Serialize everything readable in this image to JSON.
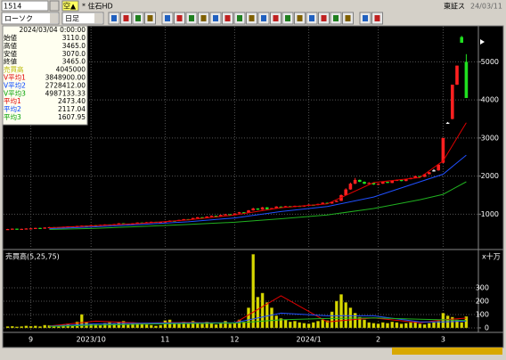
{
  "toolbar": {
    "symbol": "1514",
    "tag": "空▲",
    "name": "* 住石HD",
    "market": "東証ス",
    "date": "24/03/11",
    "chart_style": "ローソク",
    "period": "日足"
  },
  "info_box": {
    "datetime": "2024/03/04 0:00:00",
    "rows": [
      {
        "label": "始値",
        "value": "3110.0",
        "color": "#000000"
      },
      {
        "label": "高値",
        "value": "3465.0",
        "color": "#000000"
      },
      {
        "label": "安値",
        "value": "3070.0",
        "color": "#000000"
      },
      {
        "label": "終値",
        "value": "3465.0",
        "color": "#000000"
      },
      {
        "label": "売買高",
        "value": "4045000",
        "color": "#b8b800"
      },
      {
        "label": "V平均1",
        "value": "3848900.00",
        "color": "#e00000"
      },
      {
        "label": "V平均2",
        "value": "2728412.00",
        "color": "#0040ff"
      },
      {
        "label": "V平均3",
        "value": "4987133.33",
        "color": "#00a000"
      },
      {
        "label": "平均1",
        "value": "2473.40",
        "color": "#e00000"
      },
      {
        "label": "平均2",
        "value": "2117.04",
        "color": "#0040ff"
      },
      {
        "label": "平均3",
        "value": "1607.95",
        "color": "#00a000"
      }
    ]
  },
  "chart_data": [
    {
      "type": "candlestick",
      "categories": [
        null,
        null,
        null,
        null,
        null,
        "9",
        null,
        null,
        null,
        null,
        null,
        null,
        null,
        null,
        null,
        null,
        null,
        null,
        "2023/10",
        null,
        null,
        null,
        null,
        null,
        null,
        null,
        null,
        null,
        null,
        null,
        null,
        null,
        null,
        null,
        "11",
        null,
        null,
        null,
        null,
        null,
        null,
        null,
        null,
        null,
        null,
        null,
        null,
        null,
        null,
        "12",
        null,
        null,
        null,
        null,
        null,
        null,
        null,
        null,
        null,
        null,
        null,
        null,
        null,
        null,
        null,
        "2024/1",
        null,
        null,
        null,
        null,
        null,
        null,
        null,
        null,
        null,
        null,
        null,
        null,
        null,
        null,
        "2",
        null,
        null,
        null,
        null,
        null,
        null,
        null,
        null,
        null,
        null,
        null,
        null,
        null,
        "3",
        null,
        null,
        null,
        null,
        null
      ],
      "candles": [
        [
          600,
          615,
          595,
          610
        ],
        [
          610,
          625,
          605,
          620
        ],
        [
          620,
          622,
          595,
          600
        ],
        [
          600,
          620,
          598,
          615
        ],
        [
          615,
          630,
          610,
          625
        ],
        [
          625,
          635,
          620,
          630
        ],
        [
          630,
          645,
          625,
          640
        ],
        [
          640,
          642,
          615,
          620
        ],
        [
          620,
          655,
          618,
          650
        ],
        [
          650,
          665,
          645,
          660
        ],
        [
          660,
          662,
          645,
          650
        ],
        [
          650,
          655,
          635,
          640
        ],
        [
          640,
          675,
          638,
          670
        ],
        [
          670,
          685,
          665,
          680
        ],
        [
          680,
          682,
          655,
          660
        ],
        [
          660,
          695,
          658,
          690
        ],
        [
          690,
          705,
          685,
          700
        ],
        [
          700,
          702,
          685,
          690
        ],
        [
          690,
          715,
          688,
          710
        ],
        [
          710,
          712,
          695,
          700
        ],
        [
          700,
          725,
          698,
          720
        ],
        [
          720,
          735,
          715,
          730
        ],
        [
          730,
          732,
          715,
          720
        ],
        [
          720,
          745,
          718,
          740
        ],
        [
          740,
          765,
          735,
          760
        ],
        [
          760,
          762,
          745,
          750
        ],
        [
          750,
          752,
          725,
          730
        ],
        [
          730,
          765,
          728,
          760
        ],
        [
          760,
          785,
          755,
          780
        ],
        [
          780,
          782,
          765,
          770
        ],
        [
          770,
          795,
          768,
          790
        ],
        [
          790,
          805,
          785,
          800
        ],
        [
          800,
          802,
          775,
          780
        ],
        [
          780,
          795,
          778,
          790
        ],
        [
          790,
          815,
          785,
          810
        ],
        [
          810,
          835,
          805,
          830
        ],
        [
          830,
          832,
          815,
          820
        ],
        [
          820,
          855,
          818,
          850
        ],
        [
          850,
          875,
          845,
          870
        ],
        [
          870,
          872,
          855,
          860
        ],
        [
          860,
          905,
          858,
          900
        ],
        [
          900,
          925,
          895,
          920
        ],
        [
          920,
          922,
          895,
          900
        ],
        [
          900,
          945,
          898,
          940
        ],
        [
          940,
          965,
          935,
          960
        ],
        [
          960,
          962,
          945,
          950
        ],
        [
          950,
          985,
          948,
          980
        ],
        [
          980,
          1010,
          975,
          1000
        ],
        [
          1000,
          1002,
          985,
          990
        ],
        [
          990,
          1025,
          985,
          1020
        ],
        [
          1020,
          1060,
          1015,
          1050
        ],
        [
          1050,
          1055,
          1035,
          1040
        ],
        [
          1040,
          1110,
          1035,
          1100
        ],
        [
          1100,
          1170,
          1095,
          1150
        ],
        [
          1150,
          1155,
          1110,
          1120
        ],
        [
          1120,
          1190,
          1115,
          1180
        ],
        [
          1180,
          1185,
          1125,
          1130
        ],
        [
          1130,
          1165,
          1125,
          1160
        ],
        [
          1160,
          1210,
          1155,
          1200
        ],
        [
          1200,
          1205,
          1175,
          1180
        ],
        [
          1180,
          1215,
          1175,
          1210
        ],
        [
          1210,
          1215,
          1185,
          1190
        ],
        [
          1190,
          1225,
          1185,
          1220
        ],
        [
          1220,
          1225,
          1195,
          1200
        ],
        [
          1200,
          1235,
          1195,
          1230
        ],
        [
          1230,
          1260,
          1225,
          1250
        ],
        [
          1250,
          1255,
          1235,
          1240
        ],
        [
          1240,
          1275,
          1235,
          1270
        ],
        [
          1270,
          1310,
          1265,
          1300
        ],
        [
          1300,
          1305,
          1275,
          1280
        ],
        [
          1280,
          1330,
          1275,
          1320
        ],
        [
          1320,
          1360,
          1315,
          1350
        ],
        [
          1350,
          1520,
          1345,
          1500
        ],
        [
          1500,
          1680,
          1490,
          1650
        ],
        [
          1650,
          1830,
          1640,
          1800
        ],
        [
          1800,
          1950,
          1790,
          1900
        ],
        [
          1900,
          1910,
          1840,
          1850
        ],
        [
          1850,
          1860,
          1790,
          1800
        ],
        [
          1800,
          1840,
          1795,
          1820
        ],
        [
          1820,
          1830,
          1770,
          1780
        ],
        [
          1780,
          1810,
          1775,
          1800
        ],
        [
          1800,
          1860,
          1795,
          1850
        ],
        [
          1850,
          1855,
          1815,
          1820
        ],
        [
          1820,
          1890,
          1815,
          1880
        ],
        [
          1880,
          1910,
          1875,
          1900
        ],
        [
          1900,
          1905,
          1865,
          1870
        ],
        [
          1870,
          1930,
          1865,
          1920
        ],
        [
          1920,
          1960,
          1915,
          1950
        ],
        [
          1950,
          2010,
          1945,
          2000
        ],
        [
          2000,
          2005,
          1975,
          1980
        ],
        [
          1980,
          2060,
          1975,
          2050
        ],
        [
          2050,
          2110,
          2045,
          2100
        ],
        [
          2150,
          2180,
          2120,
          2150
        ],
        [
          2150,
          2320,
          2140,
          2300
        ],
        [
          2350,
          3000,
          2340,
          3000
        ],
        [
          3400,
          3420,
          3380,
          3400
        ],
        [
          3500,
          4400,
          3490,
          4400
        ],
        [
          4400,
          4900,
          4390,
          4900
        ],
        [
          5650,
          5680,
          5500,
          5500
        ],
        [
          5000,
          5200,
          4050,
          4050
        ]
      ],
      "colors": {
        "up": "#ff2020",
        "down": "#20e020",
        "flat": "#ffffff"
      },
      "series": [
        {
          "color": "#e00000",
          "x": [
            9,
            19,
            29,
            39,
            49,
            59,
            69,
            79,
            89,
            94,
            99
          ],
          "values": [
            645,
            700,
            760,
            850,
            980,
            1170,
            1270,
            1830,
            1960,
            2400,
            3400
          ]
        },
        {
          "color": "#2050ff",
          "x": [
            9,
            19,
            29,
            39,
            49,
            59,
            69,
            79,
            89,
            94,
            99
          ],
          "values": [
            620,
            670,
            730,
            800,
            900,
            1070,
            1200,
            1450,
            1850,
            2050,
            2550
          ]
        },
        {
          "color": "#20b020",
          "x": [
            9,
            19,
            29,
            39,
            49,
            59,
            69,
            79,
            89,
            94,
            99
          ],
          "values": [
            600,
            630,
            680,
            730,
            790,
            880,
            980,
            1150,
            1380,
            1520,
            1850
          ]
        }
      ],
      "ylim": [
        120,
        5920
      ],
      "yticks": [
        1000,
        2000,
        3000,
        4000,
        5000
      ],
      "grid": true
    },
    {
      "type": "bar",
      "title": "売買高(5,25,75)",
      "unit_label": "x十万",
      "values": [
        10,
        12,
        8,
        10,
        15,
        12,
        15,
        10,
        20,
        18,
        12,
        10,
        25,
        30,
        15,
        45,
        100,
        40,
        30,
        25,
        20,
        35,
        40,
        30,
        45,
        50,
        25,
        40,
        35,
        30,
        25,
        20,
        15,
        20,
        55,
        60,
        40,
        35,
        45,
        30,
        50,
        40,
        30,
        45,
        35,
        25,
        40,
        50,
        30,
        40,
        60,
        45,
        150,
        550,
        230,
        260,
        190,
        150,
        90,
        70,
        60,
        45,
        50,
        40,
        35,
        30,
        40,
        50,
        60,
        55,
        120,
        200,
        250,
        190,
        150,
        110,
        80,
        60,
        40,
        35,
        30,
        40,
        35,
        45,
        40,
        30,
        35,
        40,
        45,
        30,
        25,
        35,
        40,
        50,
        110,
        90,
        80,
        60,
        40,
        85
      ],
      "color": "#d8d800",
      "series": [
        {
          "color": "#e00000",
          "x": [
            9,
            19,
            29,
            39,
            49,
            59,
            69,
            79,
            89,
            94,
            99
          ],
          "values": [
            14,
            50,
            36,
            41,
            36,
            240,
            45,
            75,
            38,
            60,
            73
          ]
        },
        {
          "color": "#2050ff",
          "x": [
            9,
            19,
            29,
            39,
            49,
            59,
            69,
            79,
            89,
            94,
            99
          ],
          "values": [
            12,
            30,
            35,
            38,
            38,
            110,
            90,
            90,
            45,
            45,
            50
          ]
        },
        {
          "color": "#20b020",
          "x": [
            9,
            19,
            29,
            39,
            49,
            59,
            69,
            79,
            89,
            94,
            99
          ],
          "values": [
            10,
            20,
            28,
            33,
            36,
            60,
            70,
            75,
            65,
            60,
            55
          ]
        }
      ],
      "ylim": [
        -27,
        573
      ],
      "yticks": [
        0,
        100,
        200,
        300
      ],
      "grid": true
    }
  ]
}
